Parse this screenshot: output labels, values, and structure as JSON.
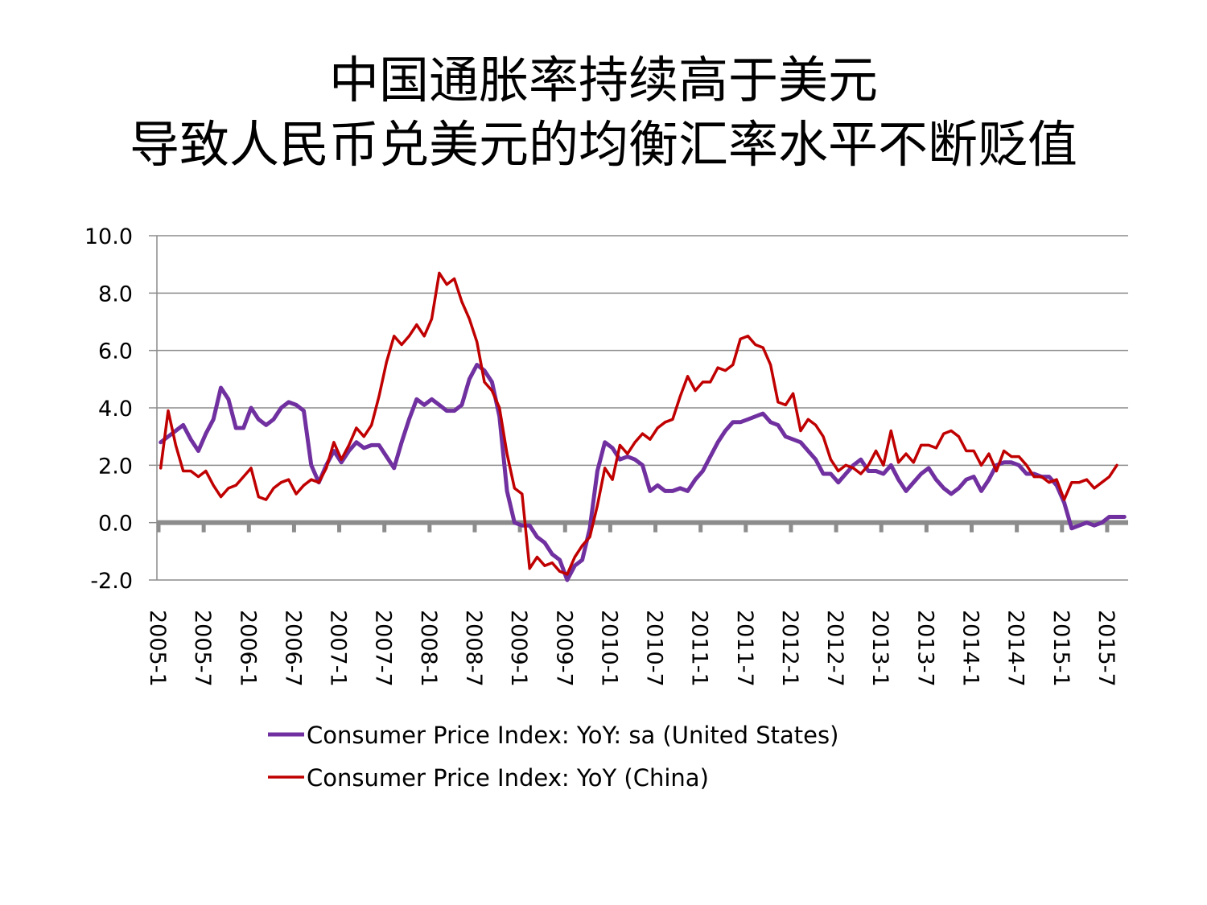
{
  "title": {
    "line1": "中国通胀率持续高于美元",
    "line2": "导致人民币兑美元的均衡汇率水平不断贬值"
  },
  "chart_data": {
    "type": "line",
    "title": "中国通胀率持续高于美元 导致人民币兑美元的均衡汇率水平不断贬值",
    "xlabel": "",
    "ylabel": "",
    "ylim": [
      -2.0,
      10.0
    ],
    "yticks": [
      "10.0",
      "8.0",
      "6.0",
      "4.0",
      "2.0",
      "0.0",
      "-2.0"
    ],
    "ytick_values": [
      10,
      8,
      6,
      4,
      2,
      0,
      -2
    ],
    "xticks": [
      "2005-1",
      "2005-7",
      "2006-1",
      "2006-7",
      "2007-1",
      "2007-7",
      "2008-1",
      "2008-7",
      "2009-1",
      "2009-7",
      "2010-1",
      "2010-7",
      "2011-1",
      "2011-7",
      "2012-1",
      "2012-7",
      "2013-1",
      "2013-7",
      "2014-1",
      "2014-7",
      "2015-1",
      "2015-7"
    ],
    "x_start": "2005-1",
    "x_end": "2015-8",
    "grid": true,
    "legend_position": "bottom",
    "series": [
      {
        "name": "Consumer Price Index: YoY: sa (United States)",
        "color": "#7030a0",
        "values": [
          2.8,
          3.0,
          3.2,
          3.4,
          2.9,
          2.5,
          3.1,
          3.6,
          4.7,
          4.3,
          3.3,
          3.3,
          4.0,
          3.6,
          3.4,
          3.6,
          4.0,
          4.2,
          4.1,
          3.9,
          2.0,
          1.4,
          2.0,
          2.5,
          2.1,
          2.5,
          2.8,
          2.6,
          2.7,
          2.7,
          2.3,
          1.9,
          2.8,
          3.6,
          4.3,
          4.1,
          4.3,
          4.1,
          3.9,
          3.9,
          4.1,
          5.0,
          5.5,
          5.3,
          4.9,
          3.7,
          1.1,
          0.0,
          -0.1,
          -0.1,
          -0.5,
          -0.7,
          -1.1,
          -1.3,
          -2.0,
          -1.5,
          -1.3,
          -0.2,
          1.8,
          2.8,
          2.6,
          2.2,
          2.3,
          2.2,
          2.0,
          1.1,
          1.3,
          1.1,
          1.1,
          1.2,
          1.1,
          1.5,
          1.8,
          2.3,
          2.8,
          3.2,
          3.5,
          3.5,
          3.6,
          3.7,
          3.8,
          3.5,
          3.4,
          3.0,
          2.9,
          2.8,
          2.5,
          2.2,
          1.7,
          1.7,
          1.4,
          1.7,
          2.0,
          2.2,
          1.8,
          1.8,
          1.7,
          2.0,
          1.5,
          1.1,
          1.4,
          1.7,
          1.9,
          1.5,
          1.2,
          1.0,
          1.2,
          1.5,
          1.6,
          1.1,
          1.5,
          2.0,
          2.1,
          2.1,
          2.0,
          1.7,
          1.7,
          1.6,
          1.6,
          1.3,
          0.7,
          -0.2,
          -0.1,
          -0.0,
          -0.1,
          0.0,
          0.2,
          0.2,
          0.2
        ]
      },
      {
        "name": "Consumer Price Index: YoY (China)",
        "color": "#c00000",
        "values": [
          1.9,
          3.9,
          2.7,
          1.8,
          1.8,
          1.6,
          1.8,
          1.3,
          0.9,
          1.2,
          1.3,
          1.6,
          1.9,
          0.9,
          0.8,
          1.2,
          1.4,
          1.5,
          1.0,
          1.3,
          1.5,
          1.4,
          1.9,
          2.8,
          2.2,
          2.7,
          3.3,
          3.0,
          3.4,
          4.4,
          5.6,
          6.5,
          6.2,
          6.5,
          6.9,
          6.5,
          7.1,
          8.7,
          8.3,
          8.5,
          7.7,
          7.1,
          6.3,
          4.9,
          4.6,
          4.0,
          2.4,
          1.2,
          1.0,
          -1.6,
          -1.2,
          -1.5,
          -1.4,
          -1.7,
          -1.8,
          -1.2,
          -0.8,
          -0.5,
          0.6,
          1.9,
          1.5,
          2.7,
          2.4,
          2.8,
          3.1,
          2.9,
          3.3,
          3.5,
          3.6,
          4.4,
          5.1,
          4.6,
          4.9,
          4.9,
          5.4,
          5.3,
          5.5,
          6.4,
          6.5,
          6.2,
          6.1,
          5.5,
          4.2,
          4.1,
          4.5,
          3.2,
          3.6,
          3.4,
          3.0,
          2.2,
          1.8,
          2.0,
          1.9,
          1.7,
          2.0,
          2.5,
          2.0,
          3.2,
          2.1,
          2.4,
          2.1,
          2.7,
          2.7,
          2.6,
          3.1,
          3.2,
          3.0,
          2.5,
          2.5,
          2.0,
          2.4,
          1.8,
          2.5,
          2.3,
          2.3,
          2.0,
          1.6,
          1.6,
          1.4,
          1.5,
          0.8,
          1.4,
          1.4,
          1.5,
          1.2,
          1.4,
          1.6,
          2.0
        ]
      }
    ]
  }
}
